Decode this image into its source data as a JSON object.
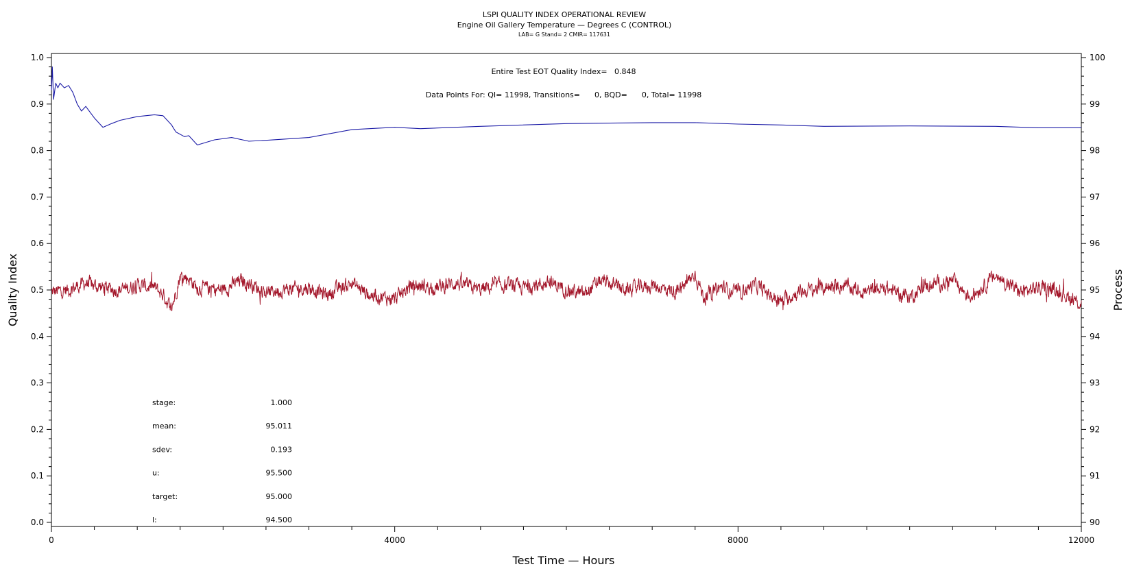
{
  "chart_data": {
    "type": "line",
    "title": "LSPI QUALITY INDEX OPERATIONAL REVIEW",
    "subtitle": "Engine Oil Gallery Temperature — Degrees C (CONTROL)",
    "subtitle2": "LAB= G Stand= 2 CMIR= 117631",
    "xlabel": "Test Time — Hours",
    "ylabel": "Quality Index",
    "y2label": "Process",
    "xlim": [
      0,
      12000
    ],
    "ylim": [
      0.0,
      1.0
    ],
    "y2lim": [
      90,
      100
    ],
    "x_ticks": [
      "0",
      "4000",
      "8000",
      "12000"
    ],
    "x_tick_values": [
      0,
      4000,
      8000,
      12000
    ],
    "y_ticks": [
      "0.0",
      "0.1",
      "0.2",
      "0.3",
      "0.4",
      "0.5",
      "0.6",
      "0.7",
      "0.8",
      "0.9",
      "1.0"
    ],
    "y_tick_values": [
      0.0,
      0.1,
      0.2,
      0.3,
      0.4,
      0.5,
      0.6,
      0.7,
      0.8,
      0.9,
      1.0
    ],
    "y2_ticks": [
      "90",
      "91",
      "92",
      "93",
      "94",
      "95",
      "96",
      "97",
      "98",
      "99",
      "100"
    ],
    "y2_tick_values": [
      90,
      91,
      92,
      93,
      94,
      95,
      96,
      97,
      98,
      99,
      100
    ],
    "grid": false,
    "annotations": {
      "quality_index": "Entire Test EOT Quality Index=   0.848",
      "data_points": "Data Points For: QI= 11998, Transitions=      0, BQD=      0, Total= 11998"
    },
    "stats": [
      {
        "label": "stage:",
        "value": "1.000"
      },
      {
        "label": "mean:",
        "value": "95.011"
      },
      {
        "label": "sdev:",
        "value": "0.193"
      },
      {
        "label": "u:",
        "value": "95.500"
      },
      {
        "label": "target:",
        "value": "95.000"
      },
      {
        "label": "l:",
        "value": "94.500"
      }
    ],
    "series": [
      {
        "axis": "left",
        "color": "#1a1aa6",
        "x": [
          0,
          10,
          25,
          50,
          75,
          100,
          150,
          200,
          250,
          300,
          350,
          400,
          500,
          600,
          700,
          800,
          1000,
          1200,
          1300,
          1400,
          1450,
          1550,
          1600,
          1700,
          1900,
          2100,
          2300,
          2500,
          3000,
          3500,
          4000,
          4300,
          5000,
          6000,
          7000,
          7500,
          8000,
          8500,
          9000,
          10000,
          11000,
          11500,
          12000
        ],
        "values": [
          0.93,
          0.98,
          0.91,
          0.945,
          0.935,
          0.945,
          0.935,
          0.94,
          0.925,
          0.9,
          0.885,
          0.895,
          0.87,
          0.85,
          0.858,
          0.865,
          0.873,
          0.877,
          0.875,
          0.855,
          0.84,
          0.83,
          0.832,
          0.812,
          0.823,
          0.828,
          0.82,
          0.822,
          0.828,
          0.845,
          0.85,
          0.847,
          0.852,
          0.858,
          0.86,
          0.86,
          0.857,
          0.855,
          0.852,
          0.853,
          0.852,
          0.849,
          0.849
        ]
      },
      {
        "axis": "right",
        "color": "#a3162a",
        "x": [
          0,
          200,
          400,
          600,
          800,
          1000,
          1200,
          1300,
          1400,
          1500,
          1600,
          1700,
          2000,
          2200,
          2300,
          2500,
          2700,
          3000,
          3200,
          3500,
          3700,
          4000,
          4200,
          4500,
          4700,
          5000,
          5200,
          5500,
          5800,
          6200,
          6400,
          6700,
          7000,
          7300,
          7500,
          7600,
          7800,
          8000,
          8200,
          8500,
          8700,
          9000,
          9200,
          9500,
          9700,
          10000,
          10200,
          10500,
          10700,
          11000,
          11300,
          11500,
          11700,
          12000
        ],
        "values": [
          94.95,
          95.0,
          95.15,
          95.05,
          95.0,
          95.1,
          95.05,
          94.9,
          94.6,
          95.3,
          95.25,
          95.05,
          95.0,
          95.2,
          95.15,
          94.95,
          95.0,
          95.05,
          94.9,
          95.15,
          94.9,
          94.8,
          95.1,
          95.05,
          95.15,
          95.0,
          95.1,
          95.05,
          95.15,
          94.9,
          95.2,
          95.0,
          95.1,
          94.95,
          95.35,
          94.85,
          95.05,
          94.95,
          95.1,
          94.75,
          94.95,
          95.05,
          95.1,
          94.95,
          95.05,
          94.85,
          95.1,
          95.2,
          94.85,
          95.3,
          94.95,
          95.05,
          95.0,
          94.7
        ]
      }
    ]
  }
}
